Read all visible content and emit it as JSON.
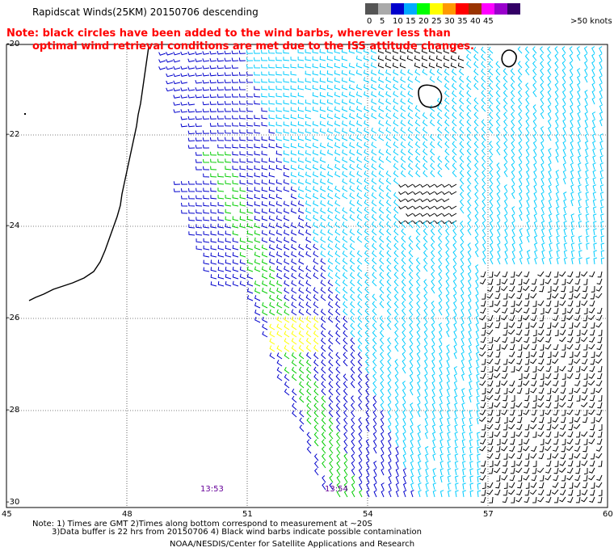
{
  "header": {
    "title": "Rapidscat Winds(25KM) 20150706 descending",
    "note_line1": "Note: black circles have been added to the wind barbs, wherever less than",
    "note_line2": "optimal wind retrieval conditions are met due to the ISS attitude changes."
  },
  "legend": {
    "unit": "knots",
    "bins": [
      {
        "label": "0",
        "color": "#555555"
      },
      {
        "label": "5",
        "color": "#aaaaaa"
      },
      {
        "label": "10",
        "color": "#0000cc"
      },
      {
        "label": "15",
        "color": "#00aaff"
      },
      {
        "label": "20",
        "color": "#00ff00"
      },
      {
        "label": "25",
        "color": "#ffff00"
      },
      {
        "label": "30",
        "color": "#ff9900"
      },
      {
        "label": "35",
        "color": "#ff0000"
      },
      {
        "label": "40",
        "color": "#993300"
      },
      {
        "label": "45",
        "color": "#ff00ff"
      },
      {
        "label": ">50",
        "color": "#9900cc"
      },
      {
        "label": "",
        "color": "#330066"
      }
    ],
    "over_label": ">50 knots"
  },
  "axes": {
    "lat_labels": [
      "-20",
      "-22",
      "-24",
      "-26",
      "-28",
      "-30"
    ],
    "lon_labels": [
      "45",
      "48",
      "51",
      "54",
      "57",
      "60"
    ]
  },
  "times": [
    "13:53",
    "13:54"
  ],
  "footer": {
    "line1": "Note: 1) Times are GMT 2)Times along bottom correspond to measurement at ~20S",
    "line2": "3)Data buffer is 22 hrs from 20150706 4) Black wind barbs indicate possible contamination",
    "credit": "NOAA/NESDIS/Center for Satellite Applications and Research"
  },
  "colors": {
    "barb_blue": "#0000cc",
    "barb_cyan": "#00ccff",
    "barb_green": "#00cc00",
    "barb_yellow": "#ffff00",
    "barb_black": "#000000",
    "note_red": "#ff0000",
    "time_purple": "#660099"
  }
}
